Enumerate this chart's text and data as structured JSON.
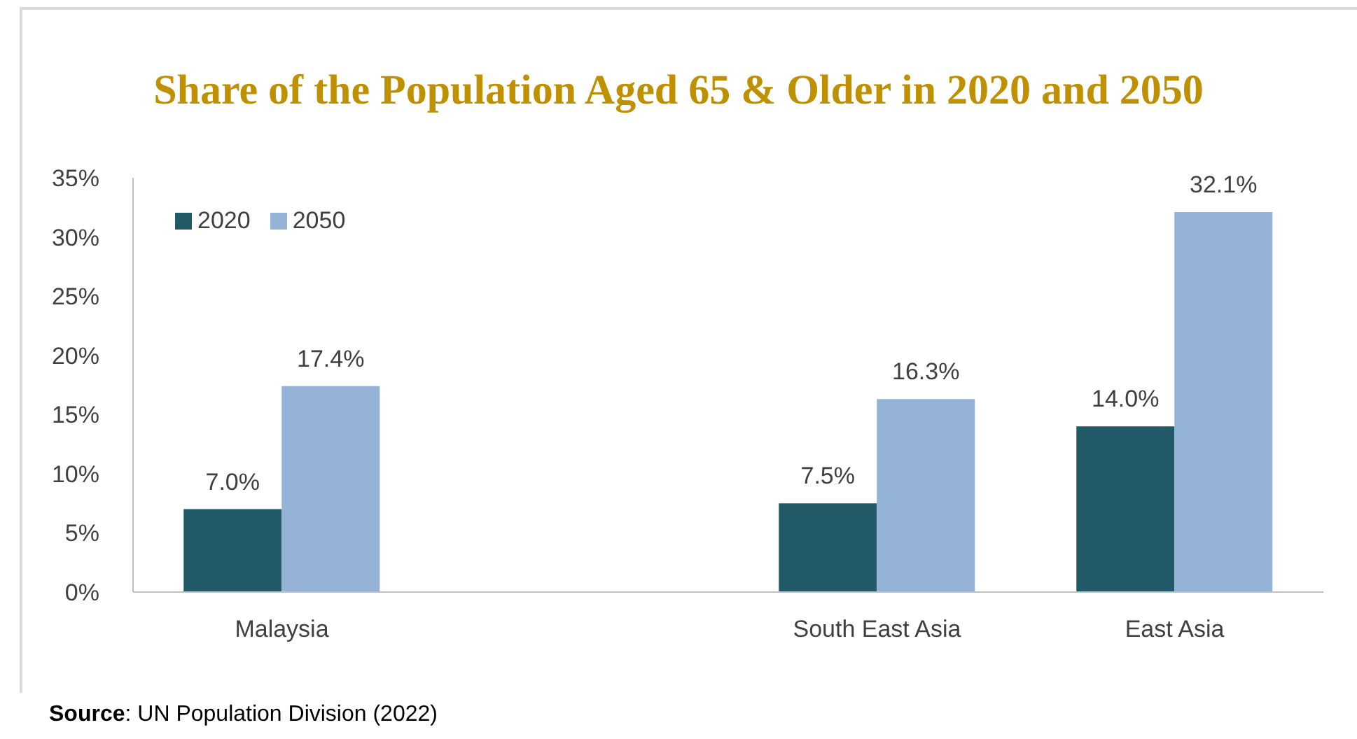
{
  "chart_data": {
    "type": "bar",
    "title": "Share of the Population Aged 65 & Older in 2020 and 2050",
    "categories": [
      "Malaysia",
      null,
      "South East Asia",
      "East Asia"
    ],
    "series": [
      {
        "name": "2020",
        "color": "#235a68",
        "values": [
          7.0,
          null,
          7.5,
          14.0
        ],
        "value_labels": [
          "7.0%",
          null,
          "7.5%",
          "14.0%"
        ]
      },
      {
        "name": "2050",
        "color": "#95b3d7",
        "values": [
          17.4,
          null,
          16.3,
          32.1
        ],
        "value_labels": [
          "17.4%",
          null,
          "16.3%",
          "32.1%"
        ]
      }
    ],
    "ylim": [
      0,
      35
    ],
    "yticks": [
      {
        "value": 0,
        "label": "0%"
      },
      {
        "value": 5,
        "label": "5%"
      },
      {
        "value": 10,
        "label": "10%"
      },
      {
        "value": 15,
        "label": "15%"
      },
      {
        "value": 20,
        "label": "20%"
      },
      {
        "value": 25,
        "label": "25%"
      },
      {
        "value": 30,
        "label": "30%"
      },
      {
        "value": 35,
        "label": "35%"
      }
    ],
    "legend": "top left",
    "grid": false,
    "annotations": [
      "Source: UN Population Division (2022)"
    ]
  }
}
